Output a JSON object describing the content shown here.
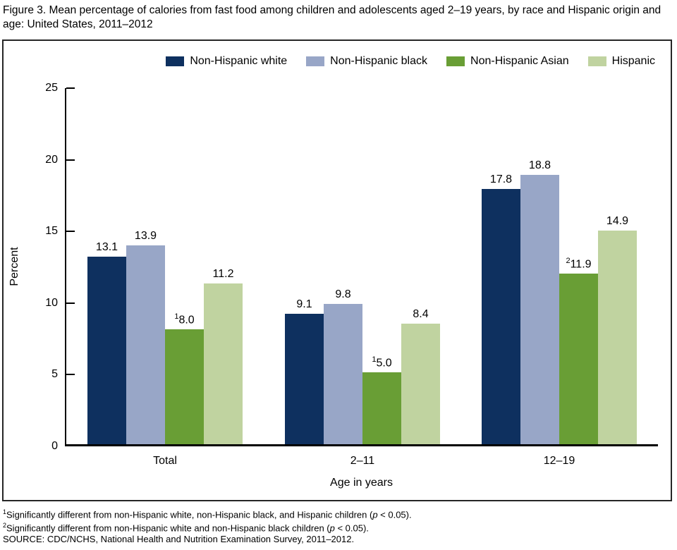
{
  "title": "Figure 3. Mean percentage of calories from fast food among children and adolescents aged 2–19 years, by race and Hispanic origin and age: United States, 2011–2012",
  "chart_data": {
    "type": "bar",
    "categories": [
      "Total",
      "2–11",
      "12–19"
    ],
    "series": [
      {
        "name": "Non-Hispanic white",
        "color": "#0e305f",
        "values": [
          13.1,
          9.1,
          17.8
        ],
        "labels": [
          "13.1",
          "9.1",
          "17.8"
        ],
        "sups": [
          "",
          "",
          ""
        ]
      },
      {
        "name": "Non-Hispanic black",
        "color": "#98a6c7",
        "values": [
          13.9,
          9.8,
          18.8
        ],
        "labels": [
          "13.9",
          "9.8",
          "18.8"
        ],
        "sups": [
          "",
          "",
          ""
        ]
      },
      {
        "name": "Non-Hispanic Asian",
        "color": "#699e35",
        "values": [
          8.0,
          5.0,
          11.9
        ],
        "labels": [
          "8.0",
          "5.0",
          "11.9"
        ],
        "sups": [
          "1",
          "1",
          "2"
        ]
      },
      {
        "name": "Hispanic",
        "color": "#c0d3a0",
        "values": [
          11.2,
          8.4,
          14.9
        ],
        "labels": [
          "11.2",
          "8.4",
          "14.9"
        ],
        "sups": [
          "",
          "",
          ""
        ]
      }
    ],
    "xlabel": "Age in years",
    "ylabel": "Percent",
    "ylim": [
      0,
      25
    ],
    "yticks": [
      0,
      5,
      10,
      15,
      20,
      25
    ],
    "legend_position": "top",
    "grid": false
  },
  "footnotes": [
    {
      "sup": "1",
      "pre": "Significantly different from non-Hispanic white, non-Hispanic black, and Hispanic children (",
      "italic": "p",
      "post": " < 0.05)."
    },
    {
      "sup": "2",
      "pre": "Significantly different from non-Hispanic white and non-Hispanic black children (",
      "italic": "p",
      "post": " < 0.05)."
    }
  ],
  "source": "SOURCE: CDC/NCHS, National Health and Nutrition Examination Survey, 2011–2012."
}
